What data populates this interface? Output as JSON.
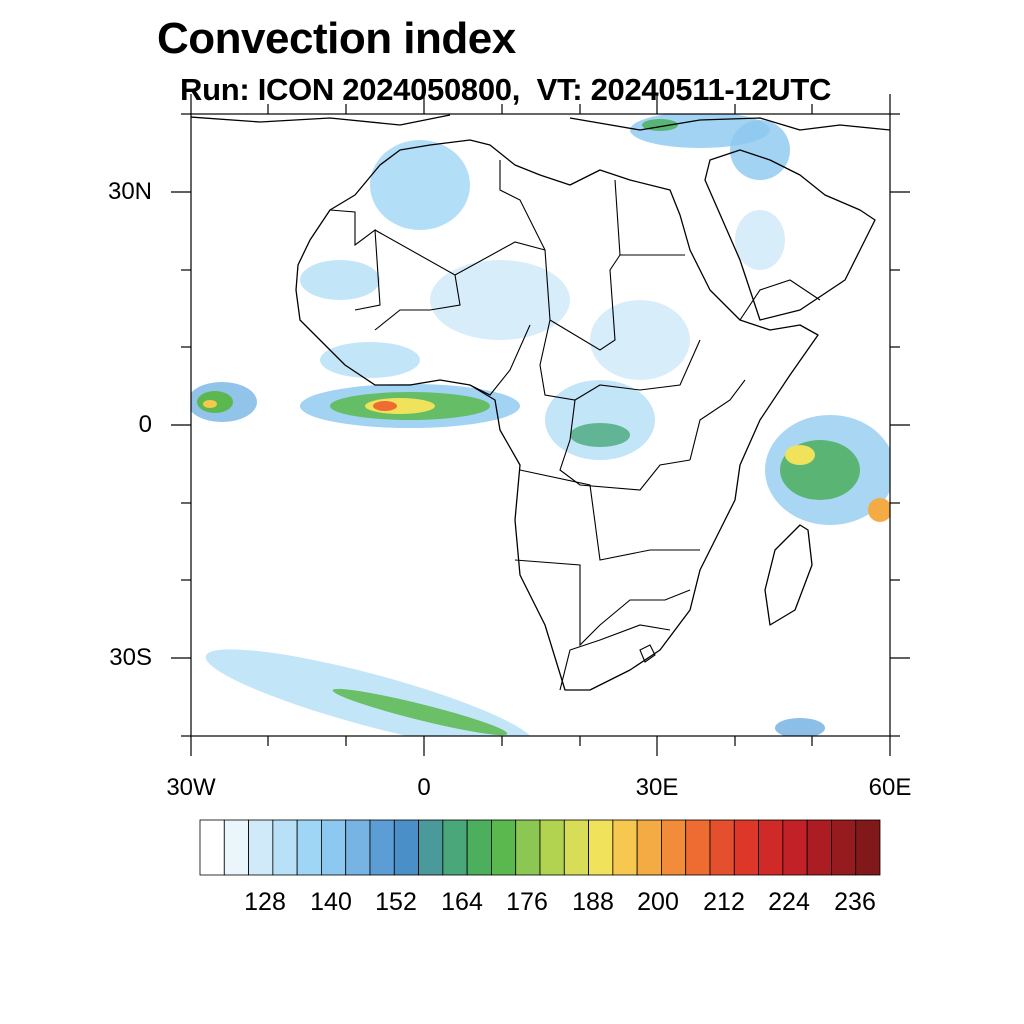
{
  "title": "Convection index",
  "subtitle": "Run: ICON 2024050800,  VT: 20240511-12UTC",
  "axes": {
    "lat_labels": [
      "30N",
      "0",
      "30S"
    ],
    "lon_labels": [
      "30W",
      "0",
      "30E",
      "60E"
    ]
  },
  "colorbar": {
    "labels": [
      "128",
      "140",
      "152",
      "164",
      "176",
      "188",
      "200",
      "212",
      "224",
      "236"
    ],
    "colors": [
      "#ffffff",
      "#eaf5fc",
      "#d0eaf9",
      "#b8e0f7",
      "#9fd6f5",
      "#8cc8ef",
      "#77b4e3",
      "#5d9dd6",
      "#4b8fc9",
      "#4a9a9b",
      "#49a77a",
      "#4caf5e",
      "#5ab84e",
      "#8cc653",
      "#b2d34f",
      "#d8dd57",
      "#f0e25b",
      "#f6c84f",
      "#f5ab44",
      "#f28c3a",
      "#ee6c32",
      "#e4502d",
      "#dc3729",
      "#cf2a28",
      "#c12127",
      "#ac1d23",
      "#961b1e",
      "#81181a"
    ]
  },
  "map": {
    "extent": "30W-60E, 40S-40N",
    "feature": "Africa coastline and country borders with convection index shading"
  }
}
